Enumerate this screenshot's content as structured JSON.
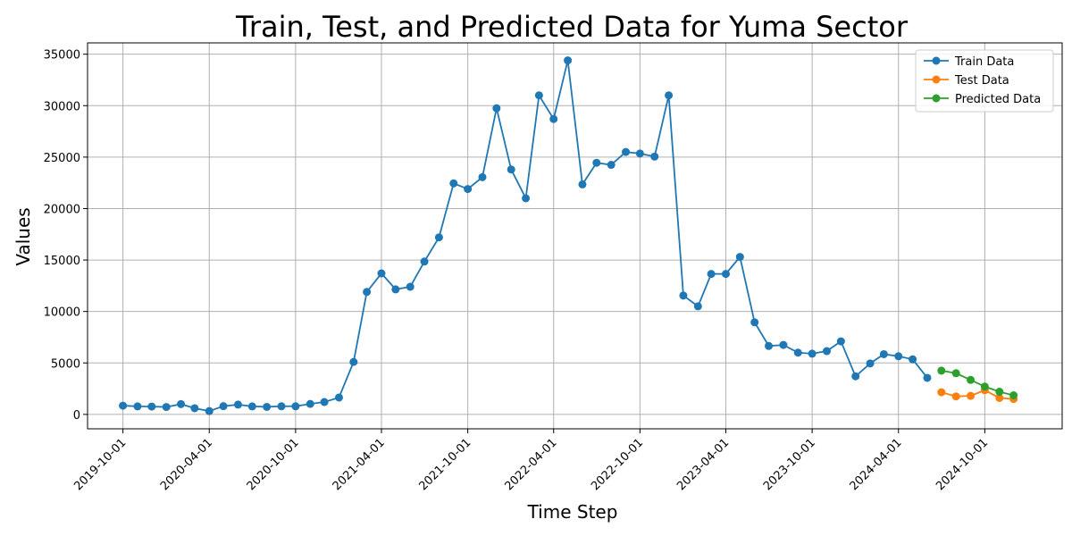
{
  "chart_data": {
    "type": "line",
    "title": "Train, Test, and Predicted Data for Yuma Sector",
    "xlabel": "Time Step",
    "ylabel": "Values",
    "x_ticks": [
      "2019-10-01",
      "2020-04-01",
      "2020-10-01",
      "2021-04-01",
      "2021-10-01",
      "2022-04-01",
      "2022-10-01",
      "2023-04-01",
      "2023-10-01",
      "2024-04-01",
      "2024-10-01"
    ],
    "y_ticks": [
      0,
      5000,
      10000,
      15000,
      20000,
      25000,
      30000,
      35000
    ],
    "ylim": [
      -1400,
      36100
    ],
    "xlim": [
      "2019-07-18",
      "2025-03-14"
    ],
    "grid": true,
    "legend_position": "top-right",
    "series": [
      {
        "name": "Train Data",
        "color": "#1f77b4",
        "x": [
          "2019-10-01",
          "2019-11-01",
          "2019-12-01",
          "2020-01-01",
          "2020-02-01",
          "2020-03-01",
          "2020-04-01",
          "2020-05-01",
          "2020-06-01",
          "2020-07-01",
          "2020-08-01",
          "2020-09-01",
          "2020-10-01",
          "2020-11-01",
          "2020-12-01",
          "2021-01-01",
          "2021-02-01",
          "2021-03-01",
          "2021-04-01",
          "2021-05-01",
          "2021-06-01",
          "2021-07-01",
          "2021-08-01",
          "2021-09-01",
          "2021-10-01",
          "2021-11-01",
          "2021-12-01",
          "2022-01-01",
          "2022-02-01",
          "2022-03-01",
          "2022-04-01",
          "2022-05-01",
          "2022-06-01",
          "2022-07-01",
          "2022-08-01",
          "2022-09-01",
          "2022-10-01",
          "2022-11-01",
          "2022-12-01",
          "2023-01-01",
          "2023-02-01",
          "2023-03-01",
          "2023-04-01",
          "2023-05-01",
          "2023-06-01",
          "2023-07-01",
          "2023-08-01",
          "2023-09-01",
          "2023-10-01",
          "2023-11-01",
          "2023-12-01",
          "2024-01-01",
          "2024-02-01",
          "2024-03-01",
          "2024-04-01",
          "2024-05-01",
          "2024-06-01"
        ],
        "values": [
          850,
          780,
          760,
          720,
          1000,
          600,
          320,
          800,
          950,
          780,
          730,
          790,
          790,
          1020,
          1200,
          1640,
          5100,
          11900,
          13700,
          12150,
          12400,
          14850,
          17200,
          22450,
          21900,
          23050,
          29750,
          23800,
          21000,
          31000,
          28700,
          34400,
          22350,
          24450,
          24250,
          25500,
          25350,
          25050,
          31000,
          11550,
          10500,
          13650,
          13650,
          15300,
          8950,
          6650,
          6750,
          6000,
          5900,
          6150,
          7100,
          3700,
          4950,
          5850,
          5650,
          5350,
          3550
        ]
      },
      {
        "name": "Test Data",
        "color": "#ff7f0e",
        "x": [
          "2024-07-01",
          "2024-08-01",
          "2024-09-01",
          "2024-10-01",
          "2024-11-01",
          "2024-12-01"
        ],
        "values": [
          2150,
          1750,
          1800,
          2350,
          1600,
          1500
        ]
      },
      {
        "name": "Predicted Data",
        "color": "#2ca02c",
        "x": [
          "2024-07-01",
          "2024-08-01",
          "2024-09-01",
          "2024-10-01",
          "2024-11-01",
          "2024-12-01"
        ],
        "values": [
          4250,
          4000,
          3350,
          2700,
          2200,
          1850
        ]
      }
    ]
  }
}
